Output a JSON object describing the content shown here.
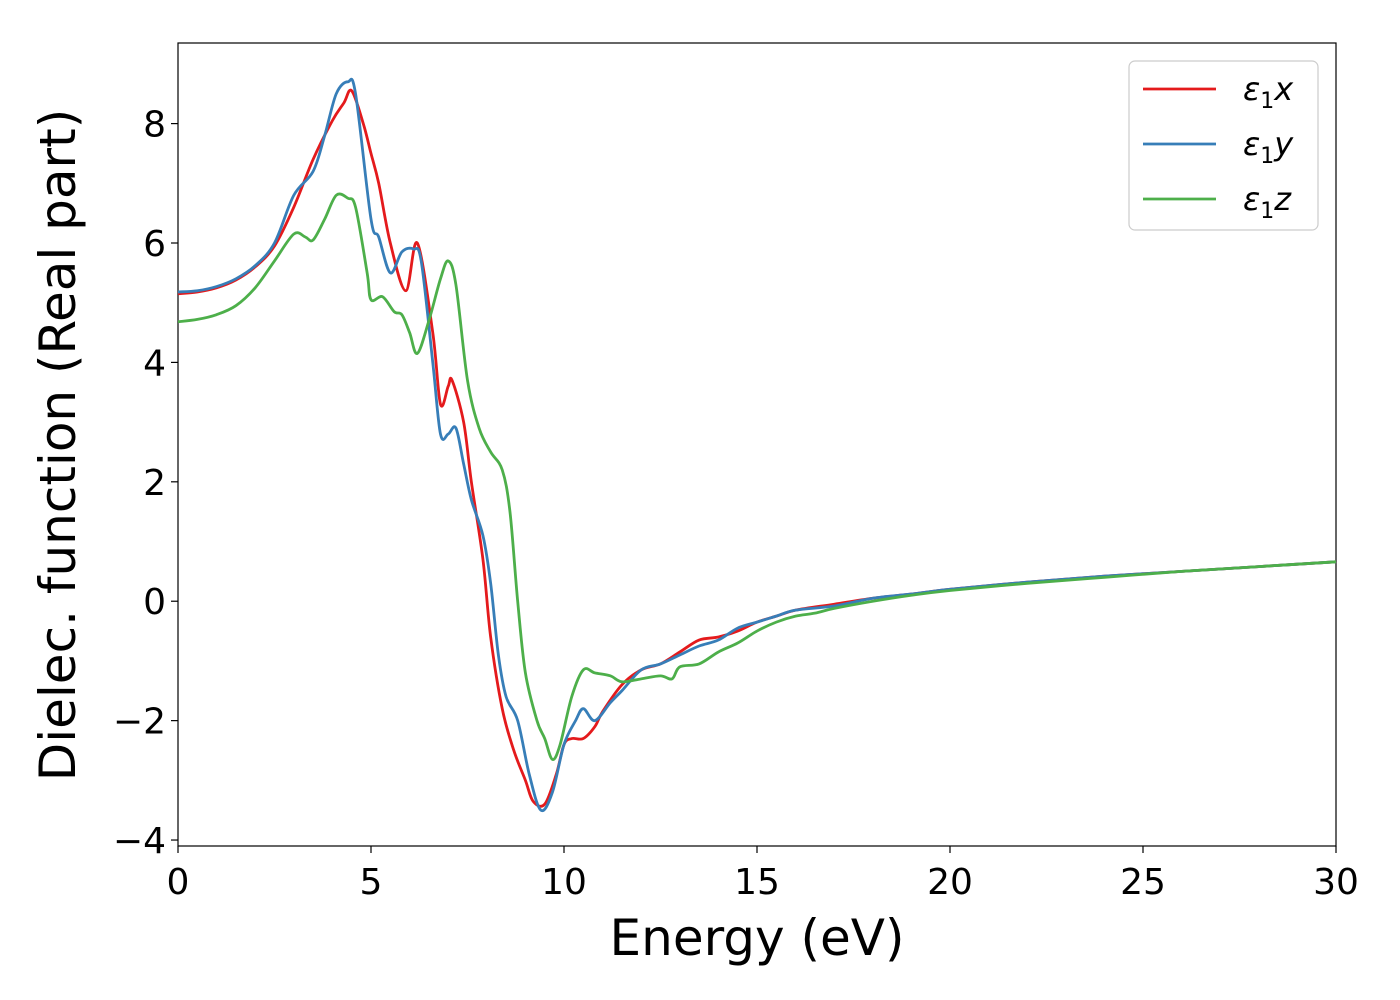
{
  "chart_data": {
    "type": "line",
    "xlabel": "Energy (eV)",
    "ylabel": "Dielec. function (Real part)",
    "xlim": [
      0,
      30
    ],
    "ylim": [
      -4.1,
      9.35
    ],
    "xticks": [
      0,
      5,
      10,
      15,
      20,
      25,
      30
    ],
    "yticks": [
      -4,
      -2,
      0,
      2,
      4,
      6,
      8
    ],
    "xtick_labels": [
      "0",
      "5",
      "10",
      "15",
      "20",
      "25",
      "30"
    ],
    "ytick_labels": [
      "−4",
      "−2",
      "0",
      "2",
      "4",
      "6",
      "8"
    ],
    "grid": false,
    "legend_position": "top-right",
    "series": [
      {
        "name": "ε₁x",
        "name_parts": {
          "base": "ε",
          "sub": "1",
          "var": "x"
        },
        "color": "#e41a1c",
        "points": [
          [
            0,
            5.15
          ],
          [
            0.5,
            5.18
          ],
          [
            1,
            5.25
          ],
          [
            1.5,
            5.38
          ],
          [
            2,
            5.6
          ],
          [
            2.5,
            5.95
          ],
          [
            3,
            6.6
          ],
          [
            3.5,
            7.4
          ],
          [
            4,
            8.05
          ],
          [
            4.3,
            8.35
          ],
          [
            4.5,
            8.55
          ],
          [
            4.8,
            8.0
          ],
          [
            5.0,
            7.5
          ],
          [
            5.2,
            7.0
          ],
          [
            5.5,
            6.0
          ],
          [
            5.9,
            5.2
          ],
          [
            6.2,
            6.0
          ],
          [
            6.6,
            4.5
          ],
          [
            6.8,
            3.3
          ],
          [
            7.0,
            3.6
          ],
          [
            7.1,
            3.7
          ],
          [
            7.4,
            3.0
          ],
          [
            7.6,
            2.0
          ],
          [
            7.9,
            0.7
          ],
          [
            8.1,
            -0.6
          ],
          [
            8.4,
            -1.8
          ],
          [
            8.7,
            -2.5
          ],
          [
            9.0,
            -3.0
          ],
          [
            9.2,
            -3.35
          ],
          [
            9.5,
            -3.4
          ],
          [
            9.8,
            -2.9
          ],
          [
            10.0,
            -2.4
          ],
          [
            10.2,
            -2.3
          ],
          [
            10.5,
            -2.3
          ],
          [
            10.8,
            -2.1
          ],
          [
            11.0,
            -1.85
          ],
          [
            11.5,
            -1.4
          ],
          [
            12.0,
            -1.15
          ],
          [
            12.5,
            -1.05
          ],
          [
            13.0,
            -0.85
          ],
          [
            13.5,
            -0.65
          ],
          [
            14.0,
            -0.6
          ],
          [
            14.5,
            -0.5
          ],
          [
            15.0,
            -0.35
          ],
          [
            15.5,
            -0.25
          ],
          [
            16.0,
            -0.15
          ],
          [
            17.0,
            -0.05
          ],
          [
            18.0,
            0.05
          ],
          [
            19.0,
            0.12
          ],
          [
            20.0,
            0.2
          ],
          [
            22.0,
            0.32
          ],
          [
            24.0,
            0.42
          ],
          [
            26.0,
            0.5
          ],
          [
            28.0,
            0.58
          ],
          [
            30.0,
            0.66
          ]
        ]
      },
      {
        "name": "ε₁y",
        "name_parts": {
          "base": "ε",
          "sub": "1",
          "var": "y"
        },
        "color": "#377eb8",
        "points": [
          [
            0,
            5.18
          ],
          [
            0.5,
            5.2
          ],
          [
            1,
            5.27
          ],
          [
            1.5,
            5.4
          ],
          [
            2,
            5.62
          ],
          [
            2.5,
            6.0
          ],
          [
            3.0,
            6.8
          ],
          [
            3.5,
            7.2
          ],
          [
            3.8,
            7.8
          ],
          [
            4.1,
            8.5
          ],
          [
            4.4,
            8.7
          ],
          [
            4.6,
            8.5
          ],
          [
            5.0,
            6.4
          ],
          [
            5.2,
            6.1
          ],
          [
            5.5,
            5.5
          ],
          [
            5.8,
            5.85
          ],
          [
            6.1,
            5.9
          ],
          [
            6.3,
            5.7
          ],
          [
            6.6,
            4.0
          ],
          [
            6.8,
            2.8
          ],
          [
            7.0,
            2.8
          ],
          [
            7.2,
            2.9
          ],
          [
            7.4,
            2.3
          ],
          [
            7.6,
            1.7
          ],
          [
            7.9,
            1.1
          ],
          [
            8.1,
            0.3
          ],
          [
            8.3,
            -0.9
          ],
          [
            8.5,
            -1.6
          ],
          [
            8.8,
            -2.0
          ],
          [
            9.1,
            -2.9
          ],
          [
            9.4,
            -3.5
          ],
          [
            9.7,
            -3.2
          ],
          [
            10.0,
            -2.4
          ],
          [
            10.3,
            -2.0
          ],
          [
            10.5,
            -1.8
          ],
          [
            10.8,
            -2.0
          ],
          [
            11.2,
            -1.7
          ],
          [
            11.5,
            -1.5
          ],
          [
            12.0,
            -1.15
          ],
          [
            12.5,
            -1.05
          ],
          [
            13.0,
            -0.9
          ],
          [
            13.5,
            -0.75
          ],
          [
            14.0,
            -0.65
          ],
          [
            14.5,
            -0.45
          ],
          [
            15.0,
            -0.35
          ],
          [
            15.5,
            -0.25
          ],
          [
            16.0,
            -0.15
          ],
          [
            17.0,
            -0.08
          ],
          [
            18.0,
            0.05
          ],
          [
            19.0,
            0.12
          ],
          [
            20.0,
            0.2
          ],
          [
            22.0,
            0.32
          ],
          [
            24.0,
            0.42
          ],
          [
            26.0,
            0.5
          ],
          [
            28.0,
            0.58
          ],
          [
            30.0,
            0.66
          ]
        ]
      },
      {
        "name": "ε₁z",
        "name_parts": {
          "base": "ε",
          "sub": "1",
          "var": "z"
        },
        "color": "#4daf4a",
        "points": [
          [
            0,
            4.68
          ],
          [
            0.5,
            4.72
          ],
          [
            1,
            4.8
          ],
          [
            1.5,
            4.95
          ],
          [
            2,
            5.25
          ],
          [
            2.5,
            5.7
          ],
          [
            3.0,
            6.15
          ],
          [
            3.3,
            6.1
          ],
          [
            3.5,
            6.05
          ],
          [
            3.8,
            6.4
          ],
          [
            4.1,
            6.8
          ],
          [
            4.4,
            6.75
          ],
          [
            4.6,
            6.6
          ],
          [
            4.9,
            5.5
          ],
          [
            5.0,
            5.05
          ],
          [
            5.3,
            5.1
          ],
          [
            5.6,
            4.85
          ],
          [
            5.8,
            4.8
          ],
          [
            6.0,
            4.5
          ],
          [
            6.2,
            4.15
          ],
          [
            6.5,
            4.7
          ],
          [
            6.8,
            5.4
          ],
          [
            7.0,
            5.7
          ],
          [
            7.2,
            5.3
          ],
          [
            7.5,
            3.7
          ],
          [
            7.8,
            2.9
          ],
          [
            8.1,
            2.5
          ],
          [
            8.4,
            2.2
          ],
          [
            8.6,
            1.5
          ],
          [
            8.8,
            0.0
          ],
          [
            9.0,
            -1.2
          ],
          [
            9.3,
            -2.0
          ],
          [
            9.5,
            -2.3
          ],
          [
            9.7,
            -2.65
          ],
          [
            9.9,
            -2.4
          ],
          [
            10.2,
            -1.6
          ],
          [
            10.5,
            -1.15
          ],
          [
            10.8,
            -1.2
          ],
          [
            11.2,
            -1.25
          ],
          [
            11.5,
            -1.35
          ],
          [
            12.0,
            -1.3
          ],
          [
            12.5,
            -1.25
          ],
          [
            12.8,
            -1.3
          ],
          [
            13.0,
            -1.1
          ],
          [
            13.5,
            -1.05
          ],
          [
            14.0,
            -0.85
          ],
          [
            14.5,
            -0.7
          ],
          [
            15.0,
            -0.5
          ],
          [
            15.5,
            -0.35
          ],
          [
            16.0,
            -0.25
          ],
          [
            16.5,
            -0.2
          ],
          [
            17.0,
            -0.12
          ],
          [
            18.0,
            0.0
          ],
          [
            19.0,
            0.1
          ],
          [
            20.0,
            0.18
          ],
          [
            22.0,
            0.3
          ],
          [
            24.0,
            0.4
          ],
          [
            26.0,
            0.5
          ],
          [
            28.0,
            0.58
          ],
          [
            30.0,
            0.66
          ]
        ]
      }
    ]
  }
}
